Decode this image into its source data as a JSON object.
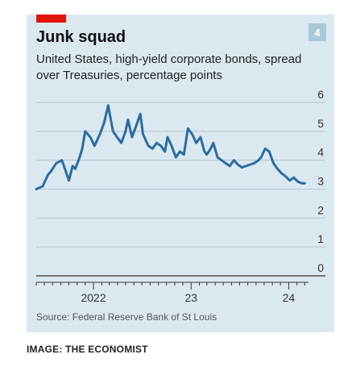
{
  "title": "Junk squad",
  "subtitle": "United States, high-yield corporate bonds, spread over Treasuries, percentage points",
  "badge": "4",
  "source": "Source: Federal Reserve Bank of St Louis",
  "credit": "IMAGE: THE ECONOMIST",
  "colors": {
    "line": "#2a6da3",
    "accent": "#e3120b",
    "background": "#dce8ef",
    "badge": "#a8c8da"
  },
  "chart_data": {
    "type": "line",
    "title": "Junk squad",
    "subtitle": "United States, high-yield corporate bonds, spread over Treasuries, percentage points",
    "xlabel": "",
    "ylabel": "",
    "ylim": [
      0,
      6
    ],
    "xlim": [
      "2021-06-01",
      "2024-03-15"
    ],
    "y_ticks": [
      "0",
      "1",
      "2",
      "3",
      "4",
      "5",
      "6"
    ],
    "x_tick_labels": [
      {
        "label": "2022",
        "date": "2022-01-01"
      },
      {
        "label": "23",
        "date": "2023-01-01"
      },
      {
        "label": "24",
        "date": "2024-01-01"
      }
    ],
    "grid": "horizontal",
    "series": [
      {
        "x": [
          "2021-06-01",
          "2021-06-25",
          "2021-07-15",
          "2021-07-25",
          "2021-08-15",
          "2021-09-05",
          "2021-09-20",
          "2021-10-01",
          "2021-10-15",
          "2021-10-25",
          "2021-11-10",
          "2021-11-20",
          "2021-12-01",
          "2021-12-20",
          "2022-01-05",
          "2022-01-25",
          "2022-02-10",
          "2022-02-25",
          "2022-03-07",
          "2022-03-15",
          "2022-03-30",
          "2022-04-15",
          "2022-05-01",
          "2022-05-10",
          "2022-05-25",
          "2022-06-10",
          "2022-06-25",
          "2022-07-05",
          "2022-07-25",
          "2022-08-10",
          "2022-08-25",
          "2022-09-10",
          "2022-09-25",
          "2022-10-05",
          "2022-10-20",
          "2022-11-05",
          "2022-11-20",
          "2022-12-05",
          "2022-12-20",
          "2023-01-05",
          "2023-01-20",
          "2023-02-05",
          "2023-02-20",
          "2023-03-01",
          "2023-03-15",
          "2023-03-25",
          "2023-04-10",
          "2023-04-25",
          "2023-05-10",
          "2023-05-25",
          "2023-06-10",
          "2023-06-25",
          "2023-07-10",
          "2023-07-25",
          "2023-08-10",
          "2023-08-25",
          "2023-09-10",
          "2023-09-20",
          "2023-10-05",
          "2023-10-20",
          "2023-11-05",
          "2023-11-20",
          "2023-12-05",
          "2023-12-20",
          "2024-01-05",
          "2024-01-20",
          "2024-02-05",
          "2024-02-20",
          "2024-03-01"
        ],
        "values": [
          3.0,
          3.1,
          3.5,
          3.6,
          3.9,
          4.0,
          3.6,
          3.3,
          3.8,
          3.7,
          4.1,
          4.4,
          5.0,
          4.8,
          4.5,
          4.9,
          5.3,
          5.9,
          5.4,
          5.0,
          4.8,
          4.6,
          5.0,
          5.4,
          4.8,
          5.2,
          5.6,
          4.9,
          4.5,
          4.4,
          4.6,
          4.5,
          4.3,
          4.8,
          4.5,
          4.1,
          4.3,
          4.2,
          5.1,
          4.9,
          4.6,
          4.8,
          4.3,
          4.2,
          4.4,
          4.6,
          4.1,
          4.0,
          3.9,
          3.8,
          4.0,
          3.85,
          3.75,
          3.8,
          3.85,
          3.9,
          4.0,
          4.1,
          4.4,
          4.3,
          3.9,
          3.7,
          3.55,
          3.45,
          3.3,
          3.4,
          3.25,
          3.2,
          3.2
        ]
      }
    ]
  }
}
